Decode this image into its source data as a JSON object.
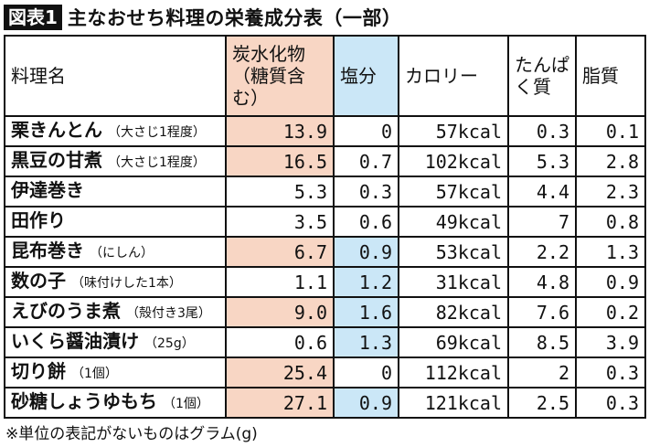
{
  "title": {
    "badge": "図表1",
    "text": "主なおせち料理の栄養成分表（一部）"
  },
  "colors": {
    "carb_highlight": "#f8d6c4",
    "salt_highlight": "#cbe7f7"
  },
  "table": {
    "headers": {
      "name": "料理名",
      "carb": "炭水化物（糖質含む）",
      "salt": "塩分",
      "cal": "カロリー",
      "protein": "たんぱく質",
      "fat": "脂質"
    },
    "rows": [
      {
        "name": "栗きんとん",
        "note": "（大さじ1程度）",
        "carb": "13.9",
        "salt": "0",
        "cal": "57kcal",
        "protein": "0.3",
        "fat": "0.1",
        "carb_hl": true,
        "salt_hl": false
      },
      {
        "name": "黒豆の甘煮",
        "note": "（大さじ1程度）",
        "carb": "16.5",
        "salt": "0.7",
        "cal": "102kcal",
        "protein": "5.3",
        "fat": "2.8",
        "carb_hl": true,
        "salt_hl": false
      },
      {
        "name": "伊達巻き",
        "note": "",
        "carb": "5.3",
        "salt": "0.3",
        "cal": "57kcal",
        "protein": "4.4",
        "fat": "2.3",
        "carb_hl": false,
        "salt_hl": false
      },
      {
        "name": "田作り",
        "note": "",
        "carb": "3.5",
        "salt": "0.6",
        "cal": "49kcal",
        "protein": "7",
        "fat": "0.8",
        "carb_hl": false,
        "salt_hl": false
      },
      {
        "name": "昆布巻き",
        "note": "（にしん）",
        "carb": "6.7",
        "salt": "0.9",
        "cal": "53kcal",
        "protein": "2.2",
        "fat": "1.3",
        "carb_hl": true,
        "salt_hl": true
      },
      {
        "name": "数の子",
        "note": "（味付けした1本）",
        "carb": "1.1",
        "salt": "1.2",
        "cal": "31kcal",
        "protein": "4.8",
        "fat": "0.9",
        "carb_hl": false,
        "salt_hl": true
      },
      {
        "name": "えびのうま煮",
        "note": "（殻付き3尾）",
        "carb": "9.0",
        "salt": "1.6",
        "cal": "82kcal",
        "protein": "7.6",
        "fat": "0.2",
        "carb_hl": true,
        "salt_hl": true
      },
      {
        "name": "いくら醤油漬け",
        "note": "（25g）",
        "carb": "0.6",
        "salt": "1.3",
        "cal": "69kcal",
        "protein": "8.5",
        "fat": "3.9",
        "carb_hl": false,
        "salt_hl": true
      },
      {
        "name": "切り餅",
        "note": "（1個）",
        "carb": "25.4",
        "salt": "0",
        "cal": "112kcal",
        "protein": "2",
        "fat": "0.3",
        "carb_hl": true,
        "salt_hl": false
      },
      {
        "name": "砂糖しょうゆもち",
        "note": "（1個）",
        "carb": "27.1",
        "salt": "0.9",
        "cal": "121kcal",
        "protein": "2.5",
        "fat": "0.3",
        "carb_hl": true,
        "salt_hl": true
      }
    ]
  },
  "footnote": "※単位の表記がないものはグラム(g)"
}
